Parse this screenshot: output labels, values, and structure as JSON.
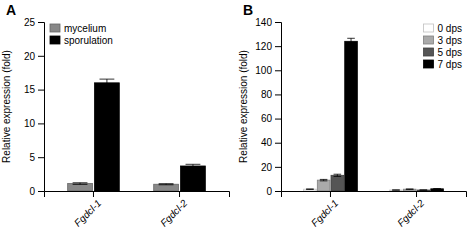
{
  "chart_data": [
    {
      "type": "bar",
      "title": "A",
      "categories": [
        "Fgdcl-1",
        "Fgdcl-2"
      ],
      "series": [
        {
          "name": "mycelium",
          "color": "#888888",
          "values": [
            1.1,
            1.0
          ],
          "errors": [
            0.12,
            0.08
          ]
        },
        {
          "name": "sporulation",
          "color": "#000000",
          "values": [
            16.0,
            3.7
          ],
          "errors": [
            0.55,
            0.25
          ]
        }
      ],
      "y_label": "Relative expression (fold)",
      "ylim": [
        0,
        25
      ],
      "yticks": [
        0,
        5,
        10,
        15,
        20,
        25
      ],
      "legend": "upper left",
      "grid": false
    },
    {
      "type": "bar",
      "title": "B",
      "categories": [
        "Fgdcl-1",
        "Fgdcl-2"
      ],
      "series": [
        {
          "name": "0 dps",
          "color": "#ffffff",
          "values": [
            1.5,
            0.8
          ],
          "errors": [
            0.15,
            0.08
          ]
        },
        {
          "name": "3 dps",
          "color": "#aaaaaa",
          "values": [
            9.0,
            1.5
          ],
          "errors": [
            0.6,
            0.12
          ]
        },
        {
          "name": "5 dps",
          "color": "#555555",
          "values": [
            13.0,
            0.8
          ],
          "errors": [
            0.9,
            0.08
          ]
        },
        {
          "name": "7 dps",
          "color": "#000000",
          "values": [
            124.0,
            1.8
          ],
          "errors": [
            2.5,
            0.15
          ]
        }
      ],
      "y_label": "Relative expression (fold)",
      "ylim": [
        0,
        140
      ],
      "yticks": [
        0,
        20,
        40,
        60,
        80,
        100,
        120,
        140
      ],
      "legend": "upper right",
      "grid": false
    }
  ]
}
